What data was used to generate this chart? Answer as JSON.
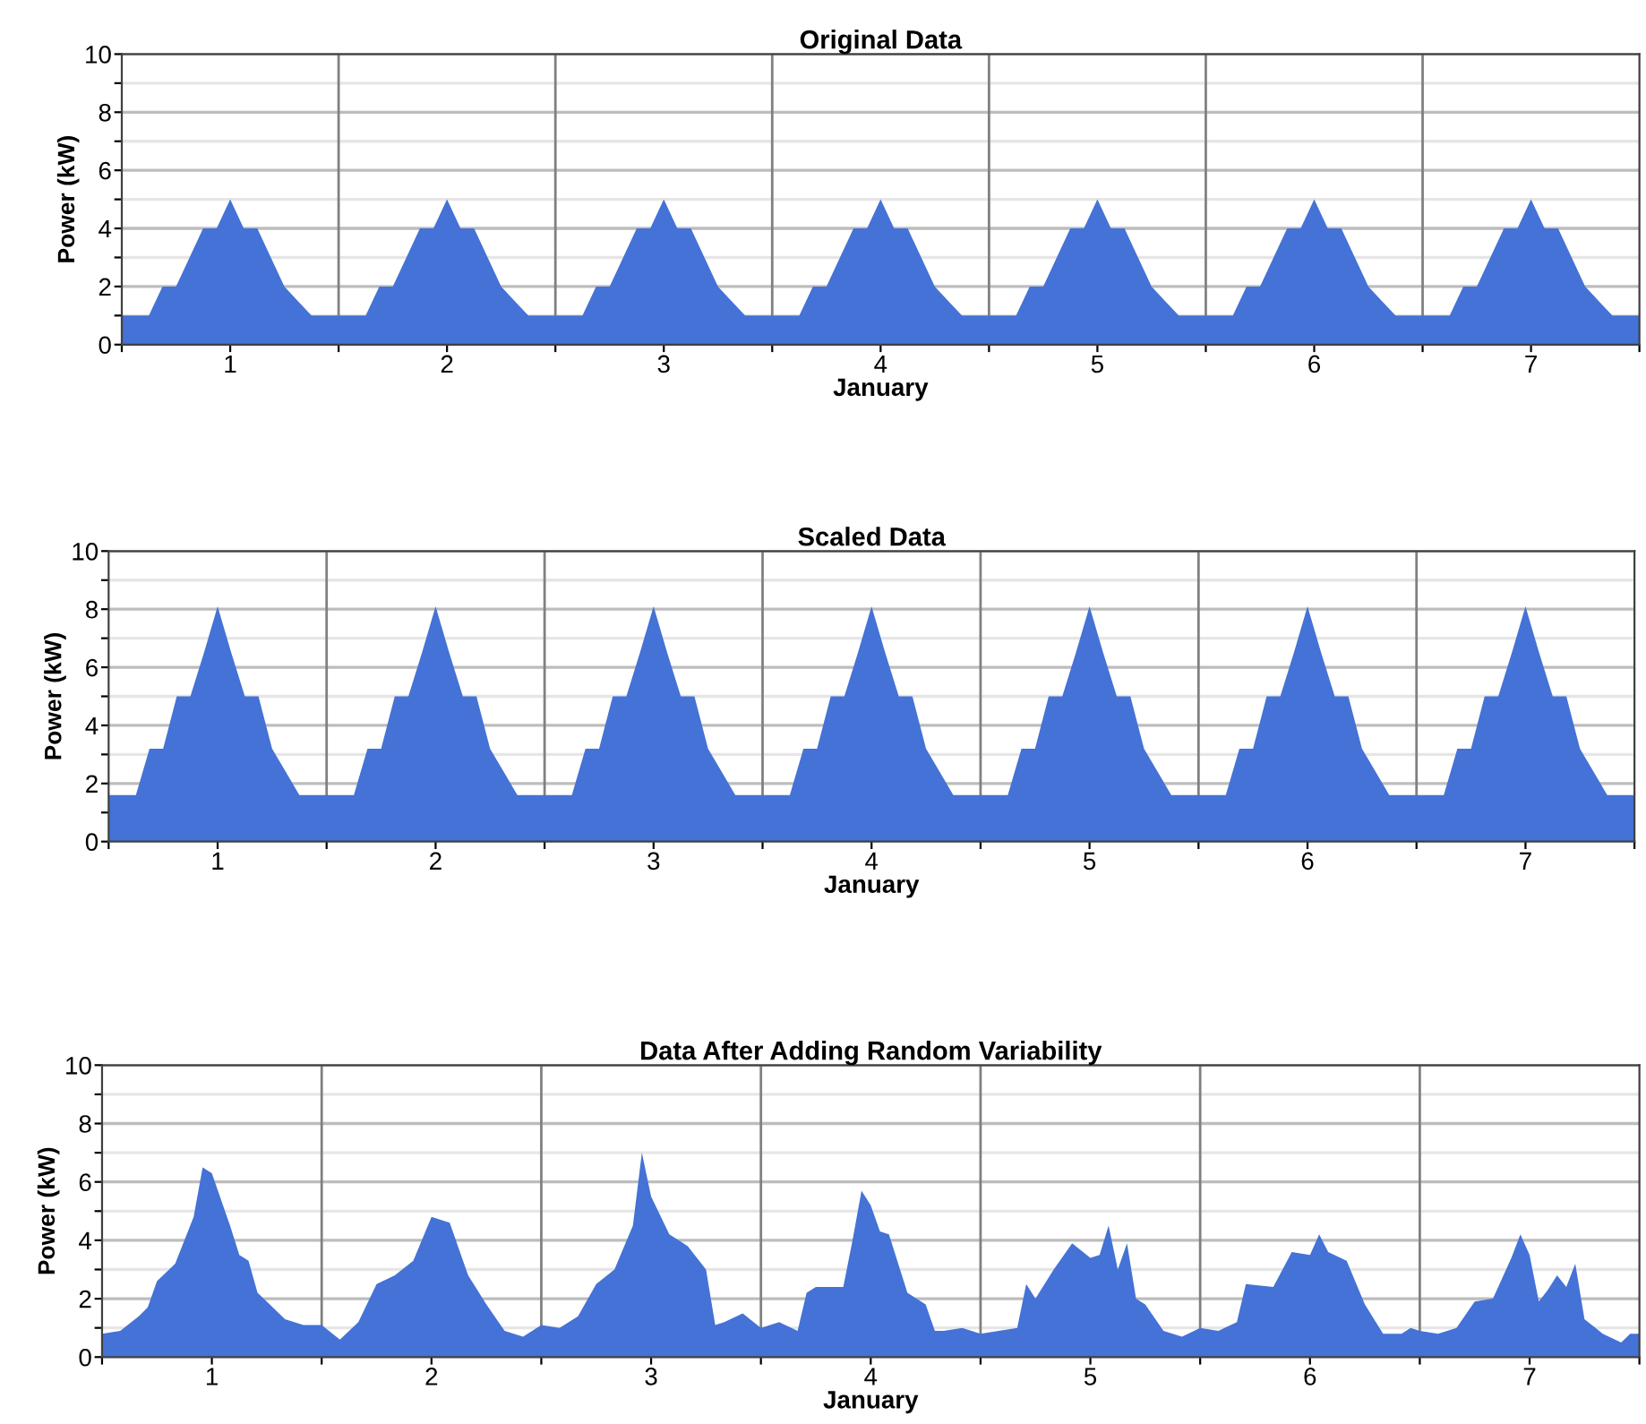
{
  "chart_data": [
    {
      "type": "area",
      "title": "Original Data",
      "xlabel": "January",
      "ylabel": "Power (kW)",
      "xlim": [
        0.5,
        7.5
      ],
      "ylim": [
        0,
        10
      ],
      "xticks": [
        {
          "value": 0.5,
          "label": null
        },
        1,
        {
          "value": 1.5,
          "label": null
        },
        2,
        {
          "value": 2.5,
          "label": null
        },
        3,
        {
          "value": 3.5,
          "label": null
        },
        4,
        {
          "value": 4.5,
          "label": null
        },
        5,
        {
          "value": 5.5,
          "label": null
        },
        6,
        {
          "value": 6.5,
          "label": null
        },
        7,
        {
          "value": 7.5,
          "label": null
        }
      ],
      "yticks": [
        0,
        {
          "value": 1,
          "label": null
        },
        2,
        {
          "value": 3,
          "label": null
        },
        4,
        {
          "value": 5,
          "label": null
        },
        6,
        {
          "value": 7,
          "label": null
        },
        8,
        {
          "value": 9,
          "label": null
        },
        10
      ],
      "grid": "y",
      "legend": false,
      "ref_lines": [
        {
          "axis": "x",
          "value": 1.5,
          "color": "#808080"
        },
        {
          "axis": "x",
          "value": 2.5,
          "color": "#808080"
        },
        {
          "axis": "x",
          "value": 3.5,
          "color": "#808080"
        },
        {
          "axis": "x",
          "value": 4.5,
          "color": "#808080"
        },
        {
          "axis": "x",
          "value": 5.5,
          "color": "#808080"
        },
        {
          "axis": "x",
          "value": 6.5,
          "color": "#808080"
        }
      ],
      "series": [
        {
          "color": "#4472d6",
          "x": [
            0.5,
            0.5625,
            0.625,
            0.6875,
            0.75,
            0.8125,
            0.875,
            0.9375,
            1,
            1.0625,
            1.125,
            1.1875,
            1.25,
            1.3125,
            1.375,
            1.4375,
            1.5,
            1.5625,
            1.625,
            1.6875,
            1.75,
            1.8125,
            1.875,
            1.9375,
            2,
            2.0625,
            2.125,
            2.1875,
            2.25,
            2.3125,
            2.375,
            2.4375,
            2.5,
            2.5625,
            2.625,
            2.6875,
            2.75,
            2.8125,
            2.875,
            2.9375,
            3,
            3.0625,
            3.125,
            3.1875,
            3.25,
            3.3125,
            3.375,
            3.4375,
            3.5,
            3.5625,
            3.625,
            3.6875,
            3.75,
            3.8125,
            3.875,
            3.9375,
            4,
            4.0625,
            4.125,
            4.1875,
            4.25,
            4.3125,
            4.375,
            4.4375,
            4.5,
            4.5625,
            4.625,
            4.6875,
            4.75,
            4.8125,
            4.875,
            4.9375,
            5,
            5.0625,
            5.125,
            5.1875,
            5.25,
            5.3125,
            5.375,
            5.4375,
            5.5,
            5.5625,
            5.625,
            5.6875,
            5.75,
            5.8125,
            5.875,
            5.9375,
            6,
            6.0625,
            6.125,
            6.1875,
            6.25,
            6.3125,
            6.375,
            6.4375,
            6.5,
            6.5625,
            6.625,
            6.6875,
            6.75,
            6.8125,
            6.875,
            6.9375,
            7,
            7.0625,
            7.125,
            7.1875,
            7.25,
            7.3125,
            7.375,
            7.4375,
            7.5
          ],
          "values": [
            1,
            1,
            1,
            2,
            2,
            3,
            4,
            4,
            5,
            4,
            4,
            3,
            2,
            1.5,
            1,
            1,
            1,
            1,
            1,
            2,
            2,
            3,
            4,
            4,
            5,
            4,
            4,
            3,
            2,
            1.5,
            1,
            1,
            1,
            1,
            1,
            2,
            2,
            3,
            4,
            4,
            5,
            4,
            4,
            3,
            2,
            1.5,
            1,
            1,
            1,
            1,
            1,
            2,
            2,
            3,
            4,
            4,
            5,
            4,
            4,
            3,
            2,
            1.5,
            1,
            1,
            1,
            1,
            1,
            2,
            2,
            3,
            4,
            4,
            5,
            4,
            4,
            3,
            2,
            1.5,
            1,
            1,
            1,
            1,
            1,
            2,
            2,
            3,
            4,
            4,
            5,
            4,
            4,
            3,
            2,
            1.5,
            1,
            1,
            1,
            1,
            1,
            2,
            2,
            3,
            4,
            4,
            5,
            4,
            4,
            3,
            2,
            1.5,
            1,
            1,
            1
          ]
        }
      ]
    },
    {
      "type": "area",
      "title": "Scaled Data",
      "xlabel": "January",
      "ylabel": "Power (kW)",
      "xlim": [
        0.5,
        7.5
      ],
      "ylim": [
        0,
        10
      ],
      "xticks": [
        {
          "value": 0.5,
          "label": null
        },
        1,
        {
          "value": 1.5,
          "label": null
        },
        2,
        {
          "value": 2.5,
          "label": null
        },
        3,
        {
          "value": 3.5,
          "label": null
        },
        4,
        {
          "value": 4.5,
          "label": null
        },
        5,
        {
          "value": 5.5,
          "label": null
        },
        6,
        {
          "value": 6.5,
          "label": null
        },
        7,
        {
          "value": 7.5,
          "label": null
        }
      ],
      "yticks": [
        0,
        {
          "value": 1,
          "label": null
        },
        2,
        {
          "value": 3,
          "label": null
        },
        4,
        {
          "value": 5,
          "label": null
        },
        6,
        {
          "value": 7,
          "label": null
        },
        8,
        {
          "value": 9,
          "label": null
        },
        10
      ],
      "grid": "y",
      "legend": false,
      "ref_lines": [
        {
          "axis": "x",
          "value": 1.5,
          "color": "#808080"
        },
        {
          "axis": "x",
          "value": 2.5,
          "color": "#808080"
        },
        {
          "axis": "x",
          "value": 3.5,
          "color": "#808080"
        },
        {
          "axis": "x",
          "value": 4.5,
          "color": "#808080"
        },
        {
          "axis": "x",
          "value": 5.5,
          "color": "#808080"
        },
        {
          "axis": "x",
          "value": 6.5,
          "color": "#808080"
        }
      ],
      "series": [
        {
          "color": "#4472d6",
          "x": [
            0.5,
            0.5625,
            0.625,
            0.6875,
            0.75,
            0.8125,
            0.875,
            0.9375,
            1,
            1.0625,
            1.125,
            1.1875,
            1.25,
            1.3125,
            1.375,
            1.4375,
            1.5,
            1.5625,
            1.625,
            1.6875,
            1.75,
            1.8125,
            1.875,
            1.9375,
            2,
            2.0625,
            2.125,
            2.1875,
            2.25,
            2.3125,
            2.375,
            2.4375,
            2.5,
            2.5625,
            2.625,
            2.6875,
            2.75,
            2.8125,
            2.875,
            2.9375,
            3,
            3.0625,
            3.125,
            3.1875,
            3.25,
            3.3125,
            3.375,
            3.4375,
            3.5,
            3.5625,
            3.625,
            3.6875,
            3.75,
            3.8125,
            3.875,
            3.9375,
            4,
            4.0625,
            4.125,
            4.1875,
            4.25,
            4.3125,
            4.375,
            4.4375,
            4.5,
            4.5625,
            4.625,
            4.6875,
            4.75,
            4.8125,
            4.875,
            4.9375,
            5,
            5.0625,
            5.125,
            5.1875,
            5.25,
            5.3125,
            5.375,
            5.4375,
            5.5,
            5.5625,
            5.625,
            5.6875,
            5.75,
            5.8125,
            5.875,
            5.9375,
            6,
            6.0625,
            6.125,
            6.1875,
            6.25,
            6.3125,
            6.375,
            6.4375,
            6.5,
            6.5625,
            6.625,
            6.6875,
            6.75,
            6.8125,
            6.875,
            6.9375,
            7,
            7.0625,
            7.125,
            7.1875,
            7.25,
            7.3125,
            7.375,
            7.4375,
            7.5
          ],
          "values": [
            1.6,
            1.6,
            1.6,
            3.2,
            3.2,
            5,
            5,
            6.5,
            8.1,
            6.5,
            5,
            5,
            3.2,
            2.4,
            1.6,
            1.6,
            1.6,
            1.6,
            1.6,
            3.2,
            3.2,
            5,
            5,
            6.5,
            8.1,
            6.5,
            5,
            5,
            3.2,
            2.4,
            1.6,
            1.6,
            1.6,
            1.6,
            1.6,
            3.2,
            3.2,
            5,
            5,
            6.5,
            8.1,
            6.5,
            5,
            5,
            3.2,
            2.4,
            1.6,
            1.6,
            1.6,
            1.6,
            1.6,
            3.2,
            3.2,
            5,
            5,
            6.5,
            8.1,
            6.5,
            5,
            5,
            3.2,
            2.4,
            1.6,
            1.6,
            1.6,
            1.6,
            1.6,
            3.2,
            3.2,
            5,
            5,
            6.5,
            8.1,
            6.5,
            5,
            5,
            3.2,
            2.4,
            1.6,
            1.6,
            1.6,
            1.6,
            1.6,
            3.2,
            3.2,
            5,
            5,
            6.5,
            8.1,
            6.5,
            5,
            5,
            3.2,
            2.4,
            1.6,
            1.6,
            1.6,
            1.6,
            1.6,
            3.2,
            3.2,
            5,
            5,
            6.5,
            8.1,
            6.5,
            5,
            5,
            3.2,
            2.4,
            1.6,
            1.6,
            1.6
          ]
        }
      ]
    },
    {
      "type": "area",
      "title": "Data After Adding Random Variability",
      "xlabel": "January",
      "ylabel": "Power (kW)",
      "xlim": [
        0.5,
        7.5
      ],
      "ylim": [
        0,
        10
      ],
      "xticks": [
        {
          "value": 0.5,
          "label": null
        },
        1,
        {
          "value": 1.5,
          "label": null
        },
        2,
        {
          "value": 2.5,
          "label": null
        },
        3,
        {
          "value": 3.5,
          "label": null
        },
        4,
        {
          "value": 4.5,
          "label": null
        },
        5,
        {
          "value": 5.5,
          "label": null
        },
        6,
        {
          "value": 6.5,
          "label": null
        },
        7,
        {
          "value": 7.5,
          "label": null
        }
      ],
      "yticks": [
        0,
        {
          "value": 1,
          "label": null
        },
        2,
        {
          "value": 3,
          "label": null
        },
        4,
        {
          "value": 5,
          "label": null
        },
        6,
        {
          "value": 7,
          "label": null
        },
        8,
        {
          "value": 9,
          "label": null
        },
        10
      ],
      "grid": "y",
      "legend": false,
      "ref_lines": [
        {
          "axis": "x",
          "value": 1.5,
          "color": "#808080"
        },
        {
          "axis": "x",
          "value": 2.5,
          "color": "#808080"
        },
        {
          "axis": "x",
          "value": 3.5,
          "color": "#808080"
        },
        {
          "axis": "x",
          "value": 4.5,
          "color": "#808080"
        },
        {
          "axis": "x",
          "value": 5.5,
          "color": "#808080"
        },
        {
          "axis": "x",
          "value": 6.5,
          "color": "#808080"
        }
      ],
      "series": [
        {
          "color": "#4472d6",
          "x": [
            0.5,
            0.583,
            0.667,
            0.708,
            0.75,
            0.833,
            0.917,
            0.958,
            1.0,
            1.083,
            1.125,
            1.167,
            1.208,
            1.25,
            1.333,
            1.417,
            1.5,
            1.583,
            1.667,
            1.75,
            1.833,
            1.917,
            2.0,
            2.083,
            2.167,
            2.25,
            2.333,
            2.417,
            2.5,
            2.583,
            2.667,
            2.75,
            2.833,
            2.917,
            2.958,
            3.0,
            3.083,
            3.167,
            3.25,
            3.292,
            3.333,
            3.417,
            3.5,
            3.583,
            3.667,
            3.708,
            3.75,
            3.833,
            3.875,
            3.917,
            3.958,
            4.0,
            4.042,
            4.083,
            4.167,
            4.25,
            4.292,
            4.333,
            4.417,
            4.5,
            4.583,
            4.667,
            4.708,
            4.75,
            4.833,
            4.917,
            5.0,
            5.042,
            5.083,
            5.125,
            5.167,
            5.208,
            5.25,
            5.333,
            5.417,
            5.5,
            5.583,
            5.667,
            5.708,
            5.833,
            5.917,
            6.0,
            6.042,
            6.083,
            6.167,
            6.25,
            6.333,
            6.417,
            6.458,
            6.5,
            6.583,
            6.667,
            6.75,
            6.833,
            6.917,
            6.958,
            7.0,
            7.042,
            7.083,
            7.125,
            7.167,
            7.208,
            7.25,
            7.333,
            7.417,
            7.458,
            7.5
          ],
          "values": [
            0.8,
            0.9,
            1.4,
            1.7,
            2.6,
            3.2,
            4.8,
            6.5,
            6.3,
            4.5,
            3.5,
            3.3,
            2.2,
            1.9,
            1.3,
            1.1,
            1.1,
            0.6,
            1.2,
            2.5,
            2.8,
            3.3,
            4.8,
            4.6,
            2.8,
            1.8,
            0.9,
            0.7,
            1.1,
            1.0,
            1.4,
            2.5,
            3.0,
            4.5,
            7.0,
            5.5,
            4.2,
            3.8,
            3.0,
            1.1,
            1.2,
            1.5,
            1.0,
            1.2,
            0.9,
            2.2,
            2.4,
            2.4,
            2.4,
            4.0,
            5.7,
            5.2,
            4.3,
            4.2,
            2.2,
            1.8,
            0.9,
            0.9,
            1.0,
            0.8,
            0.9,
            1.0,
            2.5,
            2.0,
            3.0,
            3.9,
            3.4,
            3.5,
            4.5,
            3.0,
            3.9,
            2.0,
            1.8,
            0.9,
            0.7,
            1.0,
            0.9,
            1.2,
            2.5,
            2.4,
            3.6,
            3.5,
            4.2,
            3.6,
            3.3,
            1.8,
            0.8,
            0.8,
            1.0,
            0.9,
            0.8,
            1.0,
            1.9,
            2.0,
            3.4,
            4.2,
            3.5,
            1.9,
            2.3,
            2.8,
            2.4,
            3.2,
            1.3,
            0.8,
            0.5,
            0.8,
            0.8
          ]
        }
      ]
    }
  ]
}
